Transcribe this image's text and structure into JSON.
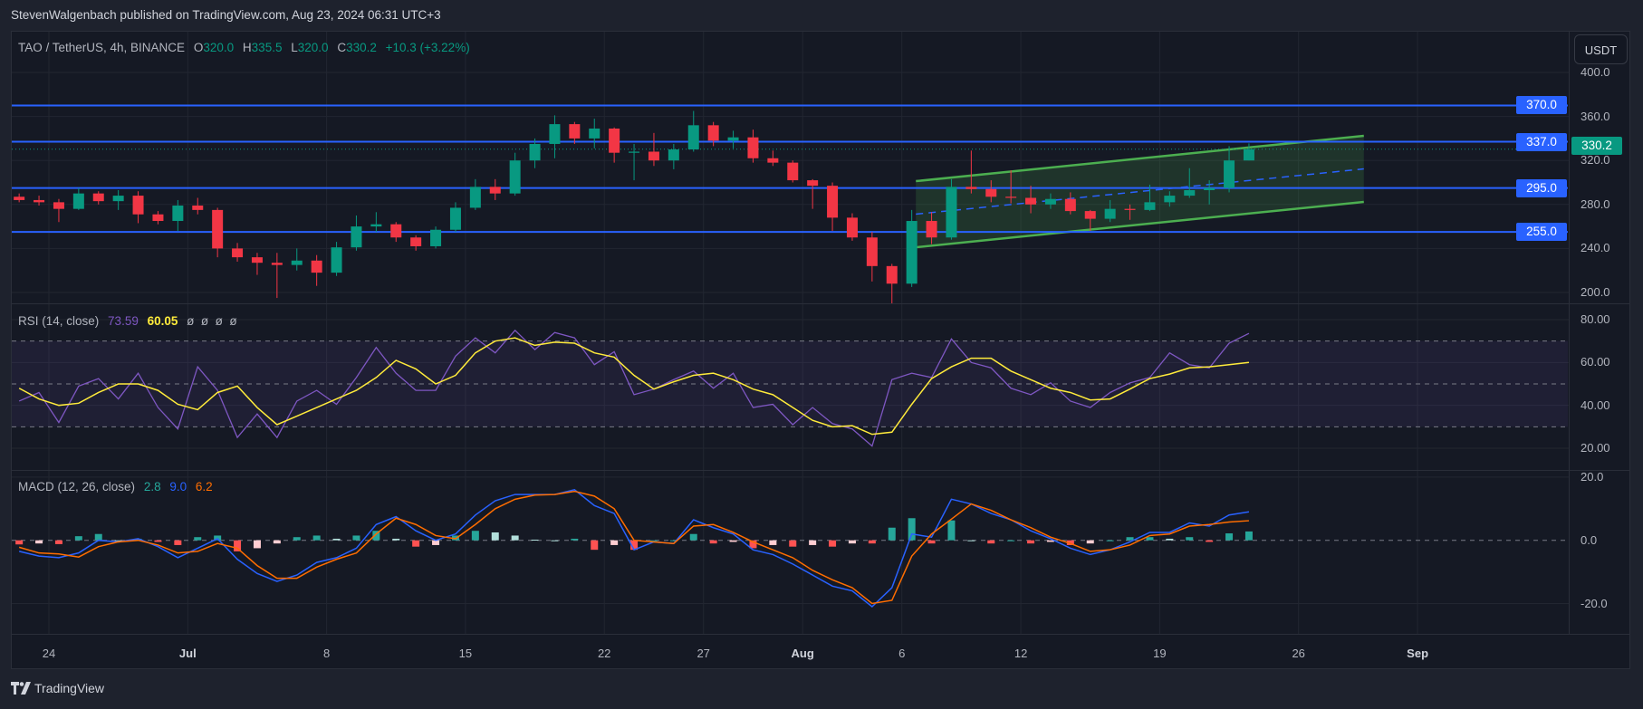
{
  "header": {
    "published": "StevenWalgenbach published on TradingView.com, Aug 23, 2024 06:31 UTC+3"
  },
  "legend": {
    "symbol": "TAO / TetherUS, 4h, BINANCE",
    "open_key": "O",
    "open": "320.0",
    "high_key": "H",
    "high": "335.5",
    "low_key": "L",
    "low": "320.0",
    "close_key": "C",
    "close": "330.2",
    "change": "+10.3 (+3.22%)"
  },
  "currency_button": "USDT",
  "colors": {
    "up": "#089981",
    "down": "#f23645",
    "level_line": "#2962ff",
    "channel": "#4caf50",
    "rsi": "#7e57c2",
    "rsi_ma": "#ffeb3b",
    "macd": "#2962ff",
    "signal": "#ff6d00",
    "hist_up_strong": "#26a69a",
    "hist_up_weak": "#b2dfdb",
    "hist_down_strong": "#ff5252",
    "hist_down_weak": "#ffcdd2"
  },
  "price_axis": {
    "ticks": [
      "400.0",
      "360.0",
      "320.0",
      "280.0",
      "240.0",
      "200.0"
    ]
  },
  "levels": [
    {
      "price": 370.0,
      "label": "370.0"
    },
    {
      "price": 337.0,
      "label": "337.0"
    },
    {
      "price": 295.0,
      "label": "295.0"
    },
    {
      "price": 255.0,
      "label": "255.0"
    }
  ],
  "last_price": {
    "price": 330.2,
    "label": "330.2"
  },
  "channel": {
    "start": {
      "date": "2024-08-06T17:00",
      "upper": 301.2,
      "mid": 271.2,
      "lower": 241.1
    },
    "end": {
      "date": "2024-08-29T07:00",
      "upper": 342.4,
      "mid": 312.3,
      "lower": 282.3
    }
  },
  "time_axis": [
    {
      "label": "24",
      "date": "2024-06-24"
    },
    {
      "label": "Jul",
      "date": "2024-07-01",
      "bold": true
    },
    {
      "label": "8",
      "date": "2024-07-08"
    },
    {
      "label": "15",
      "date": "2024-07-15"
    },
    {
      "label": "22",
      "date": "2024-07-22"
    },
    {
      "label": "27",
      "date": "2024-07-27"
    },
    {
      "label": "Aug",
      "date": "2024-08-01",
      "bold": true
    },
    {
      "label": "6",
      "date": "2024-08-06"
    },
    {
      "label": "12",
      "date": "2024-08-12"
    },
    {
      "label": "19",
      "date": "2024-08-19"
    },
    {
      "label": "26",
      "date": "2024-08-26"
    },
    {
      "label": "Sep",
      "date": "2024-09-01",
      "bold": true
    }
  ],
  "rsi": {
    "title": "RSI (14, close)",
    "value": "73.59",
    "ma_value": "60.05",
    "extra": "ø  ø  ø  ø",
    "ticks": [
      "80.00",
      "60.00",
      "40.00",
      "20.00"
    ],
    "bands": {
      "upper": 70,
      "middle": 50,
      "lower": 30
    }
  },
  "macd": {
    "title": "MACD (12, 26, close)",
    "hist_value": "2.8",
    "macd_value": "9.0",
    "signal_value": "6.2",
    "ticks": [
      "20.0",
      "0.0",
      "-20.0"
    ]
  },
  "chart_data": {
    "type": "candlestick",
    "note_interval": "4h",
    "ylim": [
      200,
      400
    ],
    "candles_columns": [
      "date",
      "open",
      "high",
      "low",
      "close"
    ],
    "candles": [
      [
        "2024-06-22",
        287,
        290,
        282,
        284
      ],
      [
        "2024-06-23",
        284,
        288,
        279,
        282
      ],
      [
        "2024-06-24",
        282,
        285,
        264,
        276
      ],
      [
        "2024-06-25",
        276,
        295,
        275,
        290
      ],
      [
        "2024-06-26",
        290,
        292,
        280,
        283
      ],
      [
        "2024-06-27",
        283,
        293,
        275,
        288
      ],
      [
        "2024-06-28",
        288,
        292,
        263,
        271
      ],
      [
        "2024-06-29",
        271,
        274,
        262,
        265
      ],
      [
        "2024-06-30",
        265,
        284,
        256,
        279
      ],
      [
        "2024-07-01",
        279,
        286,
        271,
        275
      ],
      [
        "2024-07-02",
        275,
        277,
        232,
        240
      ],
      [
        "2024-07-03",
        240,
        245,
        228,
        232
      ],
      [
        "2024-07-04",
        232,
        236,
        216,
        227
      ],
      [
        "2024-07-05",
        227,
        236,
        195,
        225
      ],
      [
        "2024-07-06",
        225,
        240,
        220,
        229
      ],
      [
        "2024-07-07",
        229,
        234,
        206,
        218
      ],
      [
        "2024-07-08",
        218,
        246,
        215,
        241
      ],
      [
        "2024-07-09",
        241,
        270,
        238,
        260
      ],
      [
        "2024-07-10",
        260,
        273,
        255,
        262
      ],
      [
        "2024-07-11",
        262,
        264,
        246,
        250
      ],
      [
        "2024-07-12",
        250,
        252,
        238,
        242
      ],
      [
        "2024-07-13",
        242,
        260,
        240,
        257
      ],
      [
        "2024-07-14",
        257,
        282,
        255,
        277
      ],
      [
        "2024-07-15",
        277,
        303,
        275,
        296
      ],
      [
        "2024-07-16",
        296,
        303,
        284,
        290
      ],
      [
        "2024-07-17",
        290,
        327,
        288,
        320
      ],
      [
        "2024-07-18",
        320,
        340,
        313,
        335
      ],
      [
        "2024-07-19",
        335,
        361,
        322,
        353
      ],
      [
        "2024-07-20",
        353,
        355,
        335,
        340
      ],
      [
        "2024-07-21",
        340,
        358,
        331,
        349
      ],
      [
        "2024-07-22",
        349,
        350,
        318,
        327
      ],
      [
        "2024-07-23",
        327,
        335,
        302,
        328
      ],
      [
        "2024-07-24",
        328,
        345,
        315,
        320
      ],
      [
        "2024-07-25",
        320,
        335,
        312,
        330
      ],
      [
        "2024-07-26",
        330,
        365,
        328,
        352
      ],
      [
        "2024-07-27",
        352,
        355,
        333,
        338
      ],
      [
        "2024-07-28",
        338,
        347,
        331,
        341
      ],
      [
        "2024-07-29",
        341,
        348,
        318,
        322
      ],
      [
        "2024-07-30",
        322,
        329,
        315,
        318
      ],
      [
        "2024-07-31",
        318,
        320,
        300,
        302
      ],
      [
        "2024-08-01",
        302,
        303,
        276,
        297
      ],
      [
        "2024-08-02",
        297,
        300,
        256,
        268
      ],
      [
        "2024-08-03",
        268,
        272,
        247,
        250
      ],
      [
        "2024-08-04",
        250,
        255,
        210,
        224
      ],
      [
        "2024-08-05",
        224,
        226,
        190,
        208
      ],
      [
        "2024-08-06",
        208,
        275,
        205,
        265
      ],
      [
        "2024-08-07",
        265,
        273,
        244,
        250
      ],
      [
        "2024-08-08",
        250,
        303,
        248,
        296
      ],
      [
        "2024-08-09",
        296,
        329,
        290,
        294
      ],
      [
        "2024-08-10",
        294,
        302,
        282,
        287
      ],
      [
        "2024-08-11",
        287,
        311,
        281,
        286
      ],
      [
        "2024-08-12",
        286,
        297,
        272,
        280
      ],
      [
        "2024-08-13",
        280,
        290,
        276,
        285
      ],
      [
        "2024-08-14",
        285,
        291,
        271,
        274
      ],
      [
        "2024-08-15",
        274,
        275,
        256,
        267
      ],
      [
        "2024-08-16",
        267,
        284,
        264,
        276
      ],
      [
        "2024-08-17",
        276,
        280,
        266,
        275
      ],
      [
        "2024-08-18",
        275,
        298,
        274,
        282
      ],
      [
        "2024-08-19",
        282,
        292,
        278,
        288
      ],
      [
        "2024-08-20",
        288,
        313,
        286,
        293
      ],
      [
        "2024-08-21",
        293,
        302,
        280,
        295
      ],
      [
        "2024-08-22",
        295,
        333,
        291,
        320
      ],
      [
        "2024-08-23",
        320,
        335.5,
        320,
        330.2
      ]
    ],
    "rsi_ylim": [
      10,
      85
    ],
    "rsi_values": [
      42,
      46,
      32,
      49,
      52.5,
      43,
      55,
      39,
      29,
      58,
      47,
      25,
      36,
      25,
      42,
      47,
      40.5,
      53,
      67,
      55,
      47,
      47,
      63,
      71.5,
      64.5,
      75,
      66,
      74,
      71.5,
      59,
      65,
      45,
      47.6,
      52,
      56,
      48,
      55,
      39,
      40.5,
      31,
      39,
      31.5,
      29,
      21,
      52,
      55,
      53,
      71,
      60,
      57.5,
      48,
      45,
      50.5,
      42,
      39,
      46,
      50.5,
      53,
      64.5,
      59,
      57.5,
      69,
      73.59
    ],
    "rsi_ma_values": [
      48,
      43,
      40,
      41,
      46,
      50,
      50,
      47,
      40.5,
      38,
      46,
      49,
      39,
      31,
      35,
      39,
      43,
      47,
      53,
      61,
      57,
      50,
      54,
      64.5,
      70,
      71.5,
      68,
      69.5,
      69,
      64.5,
      62.5,
      54,
      47.6,
      51,
      54,
      55,
      52,
      47.6,
      45,
      39,
      33,
      30,
      30.5,
      26.5,
      27.5,
      40.5,
      52.5,
      58,
      62,
      62,
      56,
      52,
      48,
      46,
      42.5,
      43,
      47.6,
      52.5,
      54.6,
      57.5,
      58,
      59,
      60.05
    ],
    "macd_ylim": [
      -27,
      25
    ],
    "macd_values": [
      -3.5,
      -5,
      -5.5,
      -4,
      0,
      -0.5,
      0.5,
      -2,
      -5.5,
      -2.5,
      0.5,
      -6,
      -10.5,
      -13,
      -11,
      -7,
      -5.5,
      -2.5,
      5,
      7.5,
      3,
      0,
      2,
      8,
      12.5,
      14.5,
      14.5,
      14.5,
      16,
      11,
      8.5,
      -3,
      -0.5,
      -1,
      6.5,
      4,
      2,
      -3,
      -4.5,
      -7.5,
      -11,
      -14.5,
      -16,
      -21,
      -15,
      2,
      1,
      13,
      11.5,
      8.5,
      6.5,
      3,
      0.5,
      -2.5,
      -4.5,
      -3,
      -0.5,
      2.5,
      2.5,
      5.5,
      4.5,
      8,
      9.0
    ],
    "signal_values": [
      -2.2,
      -4,
      -4.3,
      -5.3,
      -2,
      -0.5,
      0,
      -1.5,
      -4,
      -3.5,
      -1,
      -2.5,
      -8,
      -12,
      -12,
      -8.5,
      -6,
      -4,
      2,
      7,
      5,
      1.5,
      0.5,
      5,
      10,
      13,
      14.3,
      14.5,
      15.5,
      14,
      10,
      0,
      -0.5,
      -1,
      4.5,
      5,
      2.5,
      -0.5,
      -3,
      -5.5,
      -9.5,
      -12.5,
      -15,
      -20,
      -19,
      -5,
      2,
      6.7,
      11.5,
      9.5,
      6.5,
      4,
      1,
      -1,
      -3.5,
      -3,
      -1.5,
      1.5,
      2,
      4.5,
      5,
      5.8,
      6.2
    ]
  }
}
